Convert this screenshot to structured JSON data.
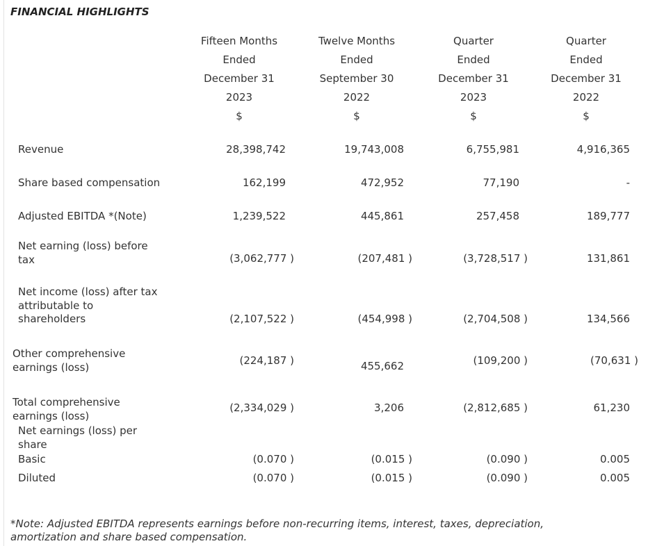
{
  "title": "FINANCIAL HIGHLIGHTS",
  "columns": [
    {
      "lines": [
        "Fifteen Months",
        "Ended",
        "December 31",
        "2023",
        "$"
      ]
    },
    {
      "lines": [
        "Twelve Months",
        "Ended",
        "September 30",
        "2022",
        "$"
      ]
    },
    {
      "lines": [
        "Quarter",
        "Ended",
        "December 31",
        "2023",
        "$"
      ]
    },
    {
      "lines": [
        "Quarter",
        "Ended",
        "December 31",
        "2022",
        "$"
      ]
    }
  ],
  "rows": [
    {
      "label": [
        "Revenue"
      ],
      "values": [
        "28,398,742",
        "19,743,008",
        "6,755,981",
        "4,916,365"
      ]
    },
    {
      "label": [
        "Share based compensation"
      ],
      "values": [
        "162,199",
        "472,952",
        "77,190",
        "-"
      ]
    },
    {
      "label": [
        "Adjusted EBITDA *(Note)"
      ],
      "values": [
        "1,239,522",
        "445,861",
        "257,458",
        "189,777"
      ]
    },
    {
      "label": [
        "Net earning (loss) before",
        "tax"
      ],
      "values": [
        "(3,062,777 )",
        "(207,481 )",
        "(3,728,517 )",
        "131,861"
      ]
    },
    {
      "label": [
        "Net income (loss) after tax",
        "attributable to",
        "shareholders"
      ],
      "values": [
        "(2,107,522 )",
        "(454,998 )",
        "(2,704,508 )",
        "134,566"
      ]
    },
    {
      "label": [
        "Other comprehensive",
        "earnings (loss)"
      ],
      "values": [
        "(224,187 )",
        "455,662",
        "(109,200 )",
        "(70,631 )"
      ]
    },
    {
      "label": [
        "Total comprehensive",
        "earnings (loss)"
      ],
      "values": [
        "(2,334,029 )",
        "3,206",
        "(2,812,685 )",
        "61,230"
      ]
    },
    {
      "label": [
        "Net earnings (loss) per",
        "share"
      ],
      "values": []
    },
    {
      "label": [
        "Basic"
      ],
      "values": [
        "(0.070 )",
        "(0.015 )",
        "(0.090 )",
        "0.005"
      ]
    },
    {
      "label": [
        "Diluted"
      ],
      "values": [
        "(0.070 )",
        "(0.015 )",
        "(0.090 )",
        "0.005"
      ]
    }
  ],
  "note": [
    "*Note: Adjusted EBITDA represents earnings before non-recurring items, interest, taxes, depreciation,",
    "amortization and share based compensation."
  ]
}
